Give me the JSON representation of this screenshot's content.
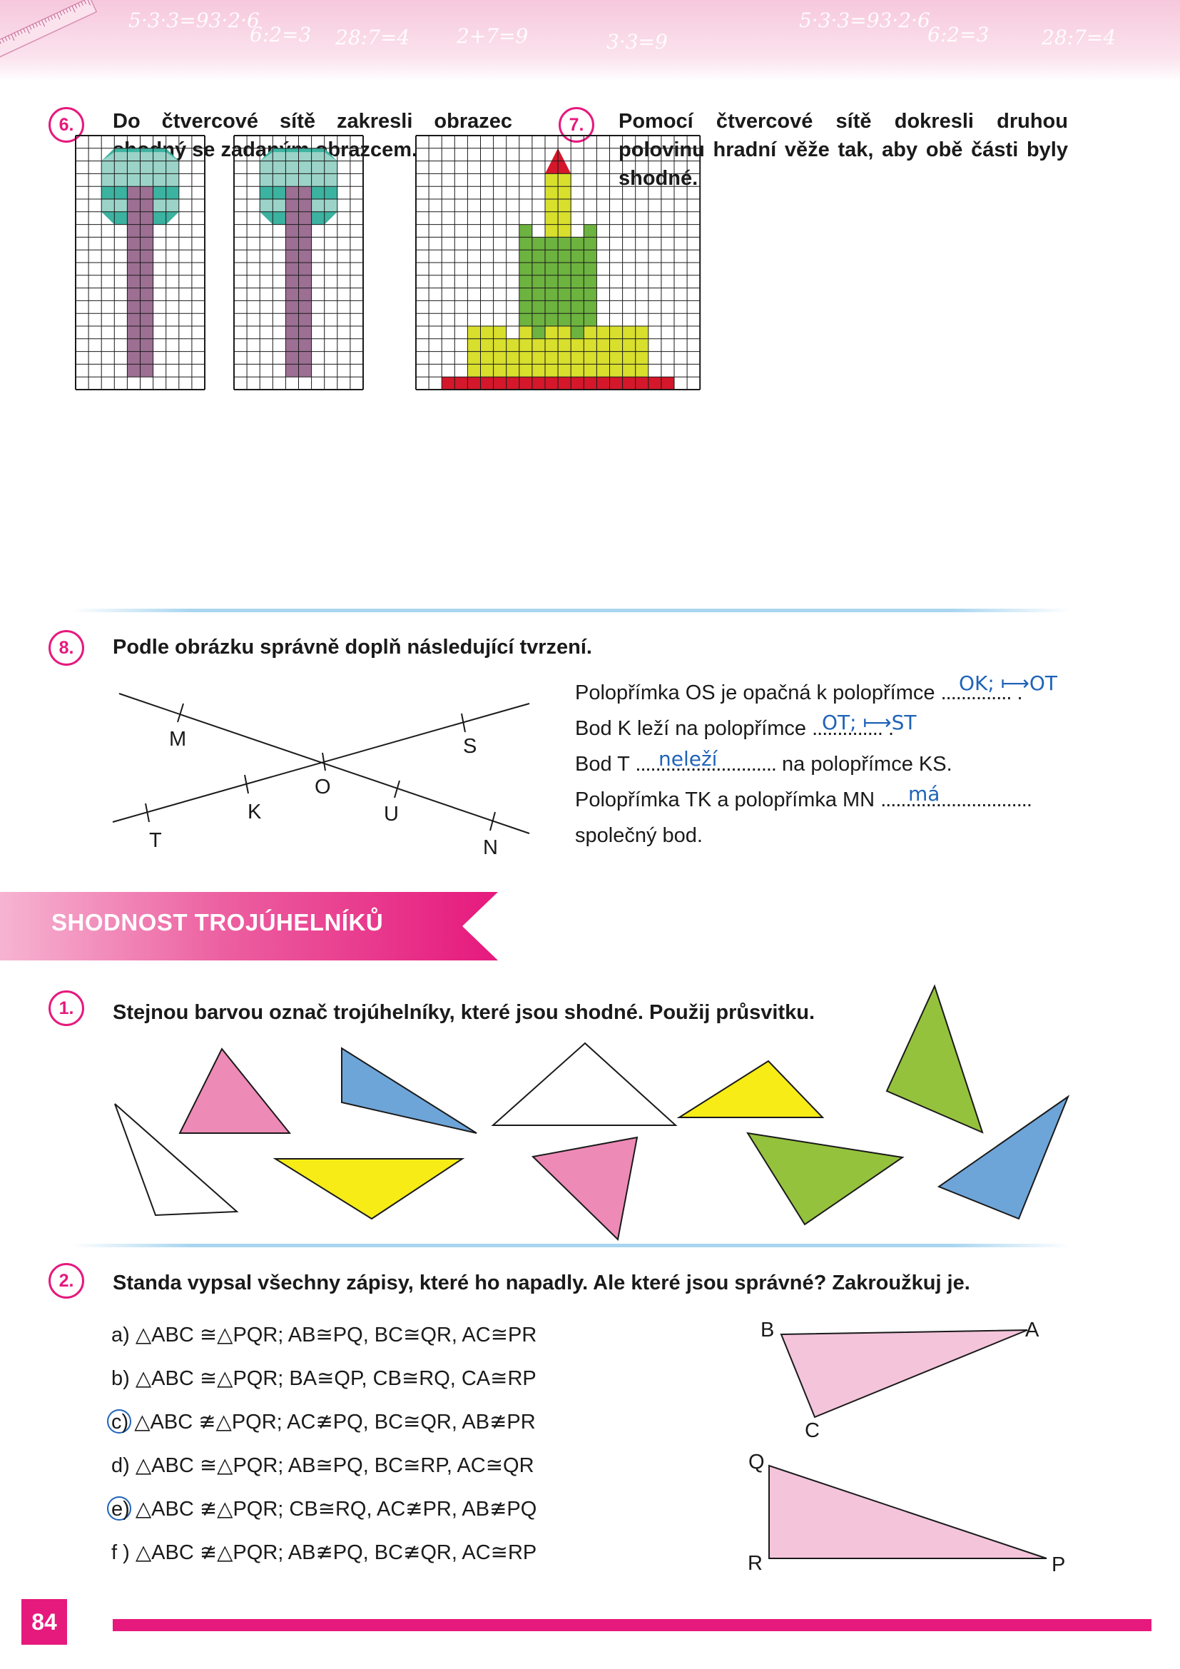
{
  "header": {
    "scribbles": [
      "5·3·3=93·2·6",
      "6:2=3",
      "28:7=4",
      "2+7=9",
      "3·3=9",
      "5·3·3=93·2·6",
      "6:2=3",
      "28:7=4"
    ]
  },
  "exercises": {
    "ex6": {
      "number": "6.",
      "text": "Do čtvercové sítě zakresli obrazec shodný se zadaným obrazcem."
    },
    "ex7": {
      "number": "7.",
      "text": "Pomocí čtvercové sítě dokresli druhou polovinu hradní věže tak, aby obě části byly shodné."
    },
    "ex8": {
      "number": "8.",
      "text": "Podle obrázku správně doplň následující tvrzení.",
      "points": [
        "M",
        "S",
        "O",
        "T",
        "K",
        "U",
        "N"
      ],
      "statements": [
        {
          "before": "Polopřímka OS je opačná k polopřímce ",
          "blank": "..............",
          "after": " .",
          "answer": "OK; ⟼OT"
        },
        {
          "before": "Bod K leží na polopřímce ",
          "blank": "..............",
          "after": " .",
          "answer": "OT; ⟼ST"
        },
        {
          "before": "Bod T ",
          "blank": "............................",
          "after": " na polopřímce KS.",
          "answer": "neleží"
        },
        {
          "before": "Polopřímka TK a polopřímka MN ",
          "blank": "..............................",
          "after": "",
          "answer": "má"
        },
        {
          "before": "společný bod.",
          "blank": "",
          "after": "",
          "answer": ""
        }
      ]
    }
  },
  "section": {
    "title": "SHODNOST TROJÚHELNÍKŮ"
  },
  "section_exercises": {
    "ex1": {
      "number": "1.",
      "text": "Stejnou barvou označ trojúhelníky, které jsou shodné. Použij průsvitku."
    },
    "ex2": {
      "number": "2.",
      "text": "Standa vypsal všechny zápisy, které ho napadly. Ale které jsou správné? Zakroužkuj je.",
      "options": [
        {
          "letter": "a)",
          "text": "△ABC ≅△PQR;  AB≅PQ,  BC≅QR,  AC≅PR",
          "circled": false
        },
        {
          "letter": "b)",
          "text": "△ABC ≅△PQR;  BA≅QP,  CB≅RQ,  CA≅RP",
          "circled": false
        },
        {
          "letter": "c)",
          "text": "△ABC ≇△PQR;  AC≇PQ,  BC≅QR,  AB≇PR",
          "circled": true
        },
        {
          "letter": "d)",
          "text": "△ABC ≅△PQR;  AB≅PQ,  BC≅RP,  AC≅QR",
          "circled": false
        },
        {
          "letter": "e)",
          "text": "△ABC ≇△PQR;  CB≅RQ,  AC≇PR,  AB≇PQ",
          "circled": true
        },
        {
          "letter": "f )",
          "text": "△ABC ≇△PQR;  AB≇PQ,  BC≇QR,  AC≅RP",
          "circled": false
        }
      ],
      "triangle1_labels": {
        "B": "B",
        "A": "A",
        "C": "C"
      },
      "triangle2_labels": {
        "Q": "Q",
        "R": "R",
        "P": "P"
      }
    }
  },
  "footer": {
    "page_number": "84"
  },
  "colors": {
    "accent": "#e6197d",
    "answer_blue": "#1f63b8",
    "tree_teal_dark": "#3bb3a0",
    "tree_teal_light": "#9bd3c8",
    "trunk_purple": "#9c6f93",
    "castle_red": "#d4172a",
    "castle_yellow": "#d8df2c",
    "castle_green": "#6db33f",
    "tri_pink": "#ee8ab6",
    "tri_blue": "#6ea5d8",
    "tri_yellow": "#f7ec16",
    "tri_green": "#95c23d"
  }
}
